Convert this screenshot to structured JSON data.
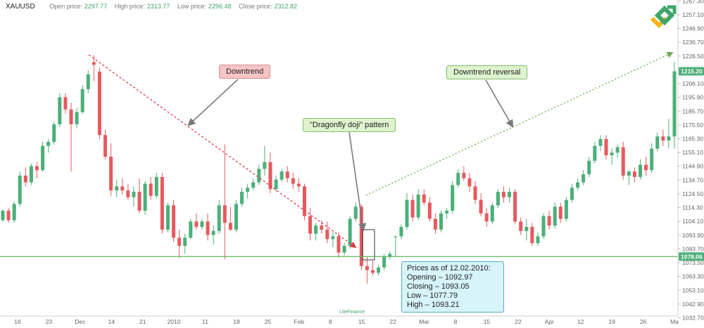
{
  "header": {
    "symbol": "XAUUSD",
    "open_label": "Open price:",
    "open_value": "2297.77",
    "high_label": "High price:",
    "high_value": "2313.77",
    "low_label": "Low price:",
    "low_value": "2296.48",
    "close_label": "Close price:",
    "close_value": "2312.82"
  },
  "annotations": {
    "downtrend": "Downtrend",
    "reversal": "Downtrend reversal",
    "pattern": "\"Dragonfly doji\" pattern",
    "info": {
      "title": "Prices as of 12.02.2010:",
      "opening": "Opening – 1092.97",
      "closing": "Closing – 1093.05",
      "low": "Low – 1077.79",
      "high": "High – 1093.21"
    }
  },
  "watermark": "LiteFinance",
  "colors": {
    "up": "#4caf7a",
    "down": "#e65a5f",
    "support": "#5cb85c",
    "axis_text": "#666666",
    "tag_bg": "#4caf7a"
  },
  "chart_data": {
    "type": "candlestick",
    "ylim": [
      1034,
      1268
    ],
    "y_ticks": [
      "1267.30",
      "1257.10",
      "1246.90",
      "1236.70",
      "1226.50",
      "1206.10",
      "1195.90",
      "1185.70",
      "1175.50",
      "1165.30",
      "1155.10",
      "1144.90",
      "1134.70",
      "1124.50",
      "1114.30",
      "1104.10",
      "1093.90",
      "1083.70",
      "1073.50",
      "1063.30",
      "1053.10",
      "1042.90",
      "1032.70"
    ],
    "x_labels": [
      "16",
      "23",
      "Dec",
      "14",
      "21",
      "2010",
      "11",
      "18",
      "25",
      "Feb",
      "8",
      "15",
      "22",
      "Mar",
      "8",
      "15",
      "22",
      "Apr",
      "12",
      "19",
      "26",
      "Ma"
    ],
    "support_level": 1078.06,
    "support_label": "1078.06",
    "last_price": 1215.2,
    "last_price_label": "1215.20",
    "candles": [
      {
        "o": 1105,
        "h": 1113,
        "l": 1104,
        "c": 1112
      },
      {
        "o": 1112,
        "h": 1114,
        "l": 1103,
        "c": 1105
      },
      {
        "o": 1105,
        "h": 1119,
        "l": 1103,
        "c": 1117
      },
      {
        "o": 1117,
        "h": 1141,
        "l": 1115,
        "c": 1138
      },
      {
        "o": 1138,
        "h": 1144,
        "l": 1130,
        "c": 1133
      },
      {
        "o": 1133,
        "h": 1147,
        "l": 1131,
        "c": 1145
      },
      {
        "o": 1145,
        "h": 1148,
        "l": 1136,
        "c": 1142
      },
      {
        "o": 1142,
        "h": 1163,
        "l": 1141,
        "c": 1160
      },
      {
        "o": 1160,
        "h": 1165,
        "l": 1155,
        "c": 1163
      },
      {
        "o": 1163,
        "h": 1178,
        "l": 1161,
        "c": 1176
      },
      {
        "o": 1176,
        "h": 1199,
        "l": 1174,
        "c": 1196
      },
      {
        "o": 1196,
        "h": 1199,
        "l": 1184,
        "c": 1187
      },
      {
        "o": 1187,
        "h": 1192,
        "l": 1141,
        "c": 1176
      },
      {
        "o": 1176,
        "h": 1188,
        "l": 1173,
        "c": 1185
      },
      {
        "o": 1185,
        "h": 1205,
        "l": 1184,
        "c": 1202
      },
      {
        "o": 1202,
        "h": 1216,
        "l": 1199,
        "c": 1213
      },
      {
        "o": 1222,
        "h": 1227,
        "l": 1208,
        "c": 1220
      },
      {
        "o": 1215,
        "h": 1218,
        "l": 1165,
        "c": 1168
      },
      {
        "o": 1168,
        "h": 1172,
        "l": 1150,
        "c": 1152
      },
      {
        "o": 1152,
        "h": 1162,
        "l": 1123,
        "c": 1127
      },
      {
        "o": 1127,
        "h": 1135,
        "l": 1122,
        "c": 1130
      },
      {
        "o": 1130,
        "h": 1136,
        "l": 1124,
        "c": 1127
      },
      {
        "o": 1127,
        "h": 1132,
        "l": 1120,
        "c": 1122
      },
      {
        "o": 1122,
        "h": 1130,
        "l": 1115,
        "c": 1126
      },
      {
        "o": 1126,
        "h": 1136,
        "l": 1110,
        "c": 1112
      },
      {
        "o": 1112,
        "h": 1134,
        "l": 1109,
        "c": 1132
      },
      {
        "o": 1132,
        "h": 1137,
        "l": 1120,
        "c": 1123
      },
      {
        "o": 1123,
        "h": 1140,
        "l": 1121,
        "c": 1137
      },
      {
        "o": 1137,
        "h": 1140,
        "l": 1095,
        "c": 1098
      },
      {
        "o": 1098,
        "h": 1118,
        "l": 1096,
        "c": 1116
      },
      {
        "o": 1116,
        "h": 1120,
        "l": 1089,
        "c": 1092
      },
      {
        "o": 1092,
        "h": 1098,
        "l": 1077,
        "c": 1086
      },
      {
        "o": 1086,
        "h": 1095,
        "l": 1080,
        "c": 1092
      },
      {
        "o": 1092,
        "h": 1106,
        "l": 1091,
        "c": 1104
      },
      {
        "o": 1104,
        "h": 1110,
        "l": 1098,
        "c": 1100
      },
      {
        "o": 1100,
        "h": 1106,
        "l": 1098,
        "c": 1104
      },
      {
        "o": 1104,
        "h": 1110,
        "l": 1090,
        "c": 1094
      },
      {
        "o": 1094,
        "h": 1101,
        "l": 1087,
        "c": 1097
      },
      {
        "o": 1097,
        "h": 1120,
        "l": 1095,
        "c": 1116
      },
      {
        "o": 1116,
        "h": 1161,
        "l": 1076,
        "c": 1103
      },
      {
        "o": 1103,
        "h": 1115,
        "l": 1097,
        "c": 1098
      },
      {
        "o": 1098,
        "h": 1120,
        "l": 1096,
        "c": 1117
      },
      {
        "o": 1117,
        "h": 1129,
        "l": 1115,
        "c": 1126
      },
      {
        "o": 1126,
        "h": 1132,
        "l": 1121,
        "c": 1129
      },
      {
        "o": 1129,
        "h": 1136,
        "l": 1127,
        "c": 1133
      },
      {
        "o": 1133,
        "h": 1146,
        "l": 1131,
        "c": 1143
      },
      {
        "o": 1143,
        "h": 1160,
        "l": 1138,
        "c": 1148
      },
      {
        "o": 1148,
        "h": 1155,
        "l": 1125,
        "c": 1128
      },
      {
        "o": 1128,
        "h": 1138,
        "l": 1126,
        "c": 1135
      },
      {
        "o": 1135,
        "h": 1143,
        "l": 1133,
        "c": 1141
      },
      {
        "o": 1141,
        "h": 1145,
        "l": 1133,
        "c": 1136
      },
      {
        "o": 1136,
        "h": 1140,
        "l": 1128,
        "c": 1132
      },
      {
        "o": 1132,
        "h": 1136,
        "l": 1126,
        "c": 1130
      },
      {
        "o": 1130,
        "h": 1132,
        "l": 1105,
        "c": 1108
      },
      {
        "o": 1108,
        "h": 1114,
        "l": 1090,
        "c": 1095
      },
      {
        "o": 1095,
        "h": 1103,
        "l": 1090,
        "c": 1101
      },
      {
        "o": 1101,
        "h": 1105,
        "l": 1095,
        "c": 1098
      },
      {
        "o": 1098,
        "h": 1104,
        "l": 1088,
        "c": 1091
      },
      {
        "o": 1091,
        "h": 1096,
        "l": 1085,
        "c": 1093
      },
      {
        "o": 1093,
        "h": 1096,
        "l": 1077,
        "c": 1081
      },
      {
        "o": 1081,
        "h": 1088,
        "l": 1079,
        "c": 1086
      },
      {
        "o": 1086,
        "h": 1108,
        "l": 1084,
        "c": 1106
      },
      {
        "o": 1106,
        "h": 1118,
        "l": 1104,
        "c": 1115
      },
      {
        "o": 1115,
        "h": 1117,
        "l": 1068,
        "c": 1071
      },
      {
        "o": 1071,
        "h": 1078,
        "l": 1058,
        "c": 1068
      },
      {
        "o": 1068,
        "h": 1075,
        "l": 1064,
        "c": 1066
      },
      {
        "o": 1066,
        "h": 1072,
        "l": 1064,
        "c": 1070
      },
      {
        "o": 1070,
        "h": 1080,
        "l": 1068,
        "c": 1078
      },
      {
        "o": 1078,
        "h": 1082,
        "l": 1076,
        "c": 1080
      },
      {
        "o": 1092.97,
        "h": 1093.21,
        "l": 1077.79,
        "c": 1093.05
      },
      {
        "o": 1093,
        "h": 1102,
        "l": 1091,
        "c": 1100
      },
      {
        "o": 1100,
        "h": 1125,
        "l": 1098,
        "c": 1120
      },
      {
        "o": 1120,
        "h": 1124,
        "l": 1104,
        "c": 1107
      },
      {
        "o": 1107,
        "h": 1128,
        "l": 1105,
        "c": 1124
      },
      {
        "o": 1124,
        "h": 1128,
        "l": 1116,
        "c": 1118
      },
      {
        "o": 1118,
        "h": 1122,
        "l": 1104,
        "c": 1106
      },
      {
        "o": 1106,
        "h": 1110,
        "l": 1095,
        "c": 1098
      },
      {
        "o": 1098,
        "h": 1112,
        "l": 1096,
        "c": 1110
      },
      {
        "o": 1110,
        "h": 1114,
        "l": 1106,
        "c": 1112
      },
      {
        "o": 1112,
        "h": 1134,
        "l": 1110,
        "c": 1131
      },
      {
        "o": 1131,
        "h": 1143,
        "l": 1129,
        "c": 1140
      },
      {
        "o": 1140,
        "h": 1145,
        "l": 1134,
        "c": 1136
      },
      {
        "o": 1136,
        "h": 1140,
        "l": 1126,
        "c": 1130
      },
      {
        "o": 1130,
        "h": 1134,
        "l": 1117,
        "c": 1120
      },
      {
        "o": 1120,
        "h": 1125,
        "l": 1108,
        "c": 1110
      },
      {
        "o": 1110,
        "h": 1114,
        "l": 1100,
        "c": 1104
      },
      {
        "o": 1104,
        "h": 1118,
        "l": 1102,
        "c": 1116
      },
      {
        "o": 1116,
        "h": 1128,
        "l": 1114,
        "c": 1126
      },
      {
        "o": 1126,
        "h": 1130,
        "l": 1118,
        "c": 1122
      },
      {
        "o": 1122,
        "h": 1129,
        "l": 1118,
        "c": 1126
      },
      {
        "o": 1126,
        "h": 1128,
        "l": 1102,
        "c": 1104
      },
      {
        "o": 1104,
        "h": 1107,
        "l": 1094,
        "c": 1097
      },
      {
        "o": 1097,
        "h": 1106,
        "l": 1090,
        "c": 1100
      },
      {
        "o": 1100,
        "h": 1103,
        "l": 1086,
        "c": 1088
      },
      {
        "o": 1088,
        "h": 1096,
        "l": 1086,
        "c": 1093
      },
      {
        "o": 1093,
        "h": 1110,
        "l": 1091,
        "c": 1108
      },
      {
        "o": 1108,
        "h": 1112,
        "l": 1098,
        "c": 1101
      },
      {
        "o": 1101,
        "h": 1118,
        "l": 1099,
        "c": 1115
      },
      {
        "o": 1115,
        "h": 1118,
        "l": 1103,
        "c": 1106
      },
      {
        "o": 1106,
        "h": 1122,
        "l": 1104,
        "c": 1120
      },
      {
        "o": 1120,
        "h": 1132,
        "l": 1118,
        "c": 1129
      },
      {
        "o": 1129,
        "h": 1136,
        "l": 1127,
        "c": 1133
      },
      {
        "o": 1133,
        "h": 1142,
        "l": 1131,
        "c": 1139
      },
      {
        "o": 1139,
        "h": 1152,
        "l": 1137,
        "c": 1149
      },
      {
        "o": 1149,
        "h": 1163,
        "l": 1147,
        "c": 1160
      },
      {
        "o": 1160,
        "h": 1168,
        "l": 1156,
        "c": 1165
      },
      {
        "o": 1165,
        "h": 1168,
        "l": 1150,
        "c": 1153
      },
      {
        "o": 1153,
        "h": 1158,
        "l": 1146,
        "c": 1155
      },
      {
        "o": 1155,
        "h": 1161,
        "l": 1151,
        "c": 1159
      },
      {
        "o": 1159,
        "h": 1163,
        "l": 1135,
        "c": 1138
      },
      {
        "o": 1138,
        "h": 1142,
        "l": 1131,
        "c": 1141
      },
      {
        "o": 1141,
        "h": 1144,
        "l": 1133,
        "c": 1137
      },
      {
        "o": 1137,
        "h": 1150,
        "l": 1135,
        "c": 1146
      },
      {
        "o": 1146,
        "h": 1152,
        "l": 1138,
        "c": 1142
      },
      {
        "o": 1142,
        "h": 1162,
        "l": 1140,
        "c": 1158
      },
      {
        "o": 1158,
        "h": 1170,
        "l": 1156,
        "c": 1167
      },
      {
        "o": 1167,
        "h": 1172,
        "l": 1160,
        "c": 1164
      },
      {
        "o": 1164,
        "h": 1180,
        "l": 1158,
        "c": 1167
      },
      {
        "o": 1167,
        "h": 1222,
        "l": 1158,
        "c": 1215.2
      }
    ]
  }
}
